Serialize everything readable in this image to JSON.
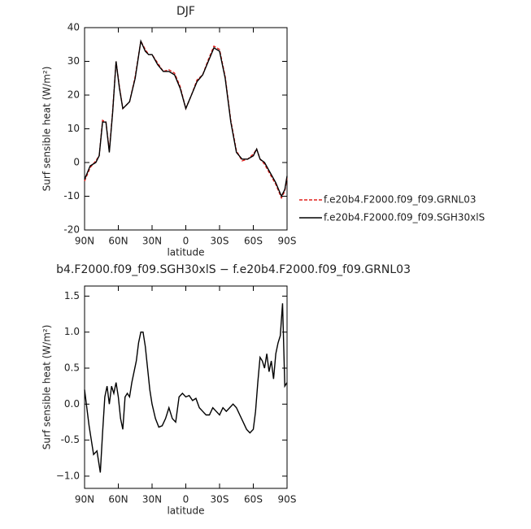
{
  "chart_data": [
    {
      "type": "line",
      "title": "DJF",
      "xlabel": "latitude",
      "ylabel": "Surf sensible heat (W/m²)",
      "x": [
        90,
        85,
        80,
        77,
        74,
        71,
        68,
        65,
        62,
        59,
        56,
        53,
        50,
        45,
        40,
        36,
        33,
        30,
        25,
        20,
        15,
        10,
        5,
        0,
        -5,
        -10,
        -15,
        -20,
        -25,
        -30,
        -35,
        -40,
        -45,
        -50,
        -55,
        -60,
        -63,
        -66,
        -70,
        -75,
        -80,
        -85,
        -88,
        -90
      ],
      "series": [
        {
          "name": "f.e20b4.F2000.f09_f09.GRNL03",
          "color": "#e0201c",
          "style": "dashed",
          "values": [
            -5.5,
            -1.5,
            0.5,
            2,
            12.5,
            12,
            3.5,
            15.5,
            30,
            22.5,
            16,
            17,
            18,
            25.5,
            36,
            33.5,
            32,
            32,
            29.5,
            27,
            27.5,
            26.5,
            22.5,
            16,
            20,
            24.5,
            26,
            30.5,
            34.5,
            33.5,
            25.5,
            12.5,
            3.5,
            0.5,
            1,
            2.5,
            4,
            1,
            -0.5,
            -3.5,
            -6.5,
            -10.5,
            -8.5,
            -4.5
          ]
        },
        {
          "name": "f.e20b4.F2000.f09_f09.SGH30xlS",
          "color": "#000000",
          "style": "solid",
          "values": [
            -5,
            -1,
            0,
            2,
            12,
            12,
            3,
            15,
            30,
            22,
            16,
            17,
            18,
            25,
            36,
            33,
            32,
            32,
            29,
            27,
            27,
            26,
            22,
            16,
            20,
            24,
            26,
            30,
            34,
            33,
            25,
            12,
            3,
            1,
            1,
            2,
            4,
            1,
            0,
            -3,
            -6,
            -10,
            -8,
            -4
          ]
        }
      ],
      "xlim": [
        90,
        -90
      ],
      "xticks": [
        {
          "value": 90,
          "label": "90N"
        },
        {
          "value": 60,
          "label": "60N"
        },
        {
          "value": 30,
          "label": "30N"
        },
        0,
        {
          "value": -30,
          "label": "30S"
        },
        {
          "value": -60,
          "label": "60S"
        },
        {
          "value": -90,
          "label": "90S"
        }
      ],
      "ylim": [
        -20,
        40
      ],
      "yticks": [
        -20,
        -10,
        0,
        10,
        20,
        30,
        40
      ],
      "legend": "right"
    },
    {
      "type": "line",
      "title": "b4.F2000.f09_f09.SGH30xlS − f.e20b4.F2000.f09_f09.GRNL03",
      "xlabel": "latitude",
      "ylabel": "Surf sensible heat (W/m²)",
      "x": [
        90,
        86,
        82,
        79,
        76,
        74,
        72,
        70,
        68,
        66,
        64,
        62,
        60,
        58,
        56,
        54,
        52,
        50,
        48,
        46,
        44,
        42,
        40,
        38,
        36,
        34,
        32,
        30,
        27,
        24,
        21,
        18,
        15,
        12,
        9,
        6,
        3,
        0,
        -3,
        -6,
        -9,
        -12,
        -15,
        -18,
        -21,
        -24,
        -27,
        -30,
        -33,
        -36,
        -39,
        -42,
        -45,
        -48,
        -51,
        -54,
        -57,
        -60,
        -62,
        -64,
        -66,
        -68,
        -70,
        -72,
        -74,
        -76,
        -78,
        -80,
        -82,
        -84,
        -86,
        -88,
        -90
      ],
      "series": [
        {
          "color": "#000000",
          "style": "solid",
          "values": [
            0.2,
            -0.3,
            -0.7,
            -0.65,
            -0.95,
            -0.4,
            0.1,
            0.25,
            0.0,
            0.25,
            0.15,
            0.3,
            0.1,
            -0.2,
            -0.35,
            0.1,
            0.15,
            0.1,
            0.3,
            0.45,
            0.6,
            0.85,
            1.0,
            1.0,
            0.8,
            0.5,
            0.2,
            0.0,
            -0.2,
            -0.32,
            -0.3,
            -0.2,
            -0.05,
            -0.2,
            -0.25,
            0.1,
            0.15,
            0.1,
            0.12,
            0.05,
            0.08,
            -0.05,
            -0.1,
            -0.15,
            -0.15,
            -0.05,
            -0.1,
            -0.15,
            -0.05,
            -0.1,
            -0.05,
            0.0,
            -0.05,
            -0.15,
            -0.25,
            -0.35,
            -0.4,
            -0.35,
            -0.1,
            0.3,
            0.65,
            0.6,
            0.5,
            0.7,
            0.45,
            0.6,
            0.35,
            0.7,
            0.85,
            0.95,
            1.4,
            0.25,
            0.3
          ]
        }
      ],
      "xlim": [
        90,
        -90
      ],
      "xticks": [
        {
          "value": 90,
          "label": "90N"
        },
        {
          "value": 60,
          "label": "60N"
        },
        {
          "value": 30,
          "label": "30N"
        },
        0,
        {
          "value": -30,
          "label": "30S"
        },
        {
          "value": -60,
          "label": "60S"
        },
        {
          "value": -90,
          "label": "90S"
        }
      ],
      "ylim": [
        -1.17,
        1.64
      ],
      "yticks": [
        {
          "value": -1,
          "label": "−1.0"
        },
        -0.5,
        {
          "value": 0,
          "label": "0.0"
        },
        0.5,
        {
          "value": 1,
          "label": "1.0"
        },
        1.5
      ]
    }
  ]
}
